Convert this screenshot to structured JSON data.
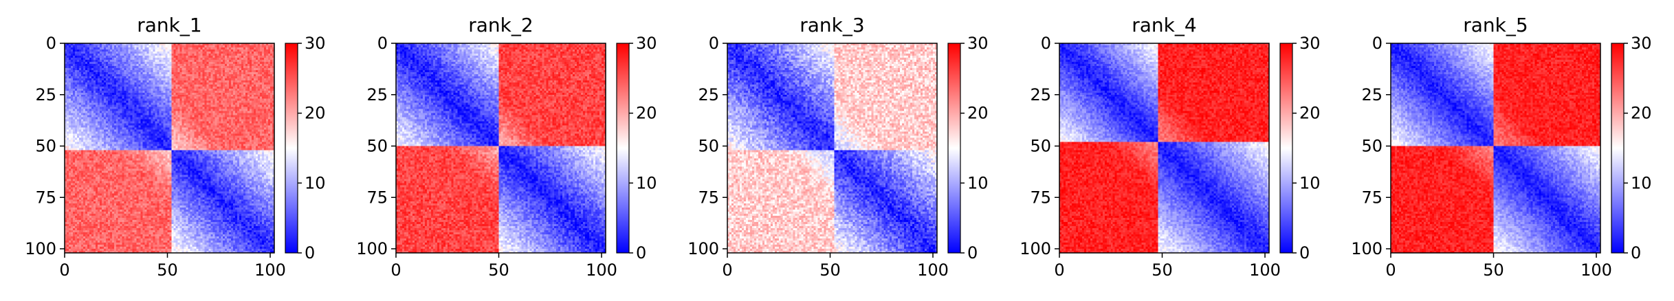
{
  "chart_data": [
    {
      "type": "heatmap",
      "title": "rank_1",
      "x_ticks": [
        "0",
        "50",
        "100"
      ],
      "y_ticks": [
        "0",
        "25",
        "50",
        "75",
        "100"
      ],
      "xlim": [
        0,
        102
      ],
      "ylim": [
        102,
        0
      ],
      "colorbar": {
        "ticks": [
          "0",
          "10",
          "20",
          "30"
        ],
        "range": [
          0,
          30
        ],
        "colormap": "bwr"
      },
      "blocks": [
        [
          0,
          52
        ],
        [
          52,
          102
        ]
      ],
      "near_diagonal_value": 2,
      "off_block_value": 24,
      "noise": 2.5
    },
    {
      "type": "heatmap",
      "title": "rank_2",
      "x_ticks": [
        "0",
        "50",
        "100"
      ],
      "y_ticks": [
        "0",
        "25",
        "50",
        "75",
        "100"
      ],
      "xlim": [
        0,
        102
      ],
      "ylim": [
        102,
        0
      ],
      "colorbar": {
        "ticks": [
          "0",
          "10",
          "20",
          "30"
        ],
        "range": [
          0,
          30
        ],
        "colormap": "bwr"
      },
      "blocks": [
        [
          0,
          50
        ],
        [
          50,
          102
        ]
      ],
      "near_diagonal_value": 1.5,
      "off_block_value": 26,
      "noise": 2.5
    },
    {
      "type": "heatmap",
      "title": "rank_3",
      "x_ticks": [
        "0",
        "50",
        "100"
      ],
      "y_ticks": [
        "0",
        "25",
        "50",
        "75",
        "100"
      ],
      "xlim": [
        0,
        102
      ],
      "ylim": [
        102,
        0
      ],
      "colorbar": {
        "ticks": [
          "0",
          "10",
          "20",
          "30"
        ],
        "range": [
          0,
          30
        ],
        "colormap": "bwr"
      },
      "blocks": [
        [
          0,
          52
        ],
        [
          52,
          102
        ]
      ],
      "near_diagonal_value": 2,
      "off_block_value": 18,
      "noise": 3
    },
    {
      "type": "heatmap",
      "title": "rank_4",
      "x_ticks": [
        "0",
        "50",
        "100"
      ],
      "y_ticks": [
        "0",
        "25",
        "50",
        "75",
        "100"
      ],
      "xlim": [
        0,
        102
      ],
      "ylim": [
        102,
        0
      ],
      "colorbar": {
        "ticks": [
          "0",
          "10",
          "20",
          "30"
        ],
        "range": [
          0,
          30
        ],
        "colormap": "bwr"
      },
      "blocks": [
        [
          0,
          48
        ],
        [
          48,
          102
        ]
      ],
      "near_diagonal_value": 1.5,
      "off_block_value": 28,
      "noise": 2
    },
    {
      "type": "heatmap",
      "title": "rank_5",
      "x_ticks": [
        "0",
        "50",
        "100"
      ],
      "y_ticks": [
        "0",
        "25",
        "50",
        "75",
        "100"
      ],
      "xlim": [
        0,
        102
      ],
      "ylim": [
        102,
        0
      ],
      "colorbar": {
        "ticks": [
          "0",
          "10",
          "20",
          "30"
        ],
        "range": [
          0,
          30
        ],
        "colormap": "bwr"
      },
      "blocks": [
        [
          0,
          50
        ],
        [
          50,
          102
        ]
      ],
      "near_diagonal_value": 1.5,
      "off_block_value": 28,
      "noise": 2
    }
  ]
}
